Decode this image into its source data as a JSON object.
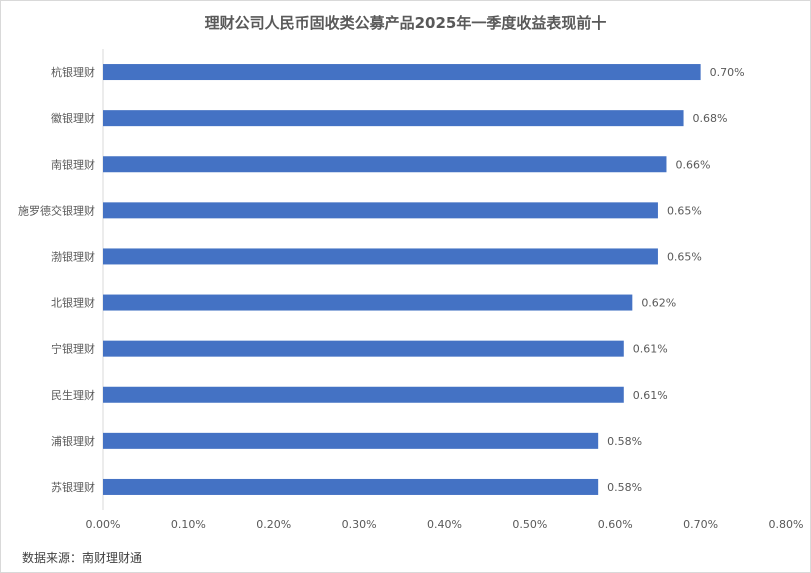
{
  "chart_data": {
    "type": "bar",
    "orientation": "horizontal",
    "title": "理财公司人民币固收类公募产品2025年一季度收益表现前十",
    "categories": [
      "杭银理财",
      "徽银理财",
      "南银理财",
      "施罗德交银理财",
      "渤银理财",
      "北银理财",
      "宁银理财",
      "民生理财",
      "浦银理财",
      "苏银理财"
    ],
    "values": [
      0.7,
      0.68,
      0.66,
      0.65,
      0.65,
      0.62,
      0.61,
      0.61,
      0.58,
      0.58
    ],
    "data_labels": [
      "0.70%",
      "0.68%",
      "0.66%",
      "0.65%",
      "0.65%",
      "0.62%",
      "0.61%",
      "0.61%",
      "0.58%",
      "0.58%"
    ],
    "xlim": [
      0,
      0.8
    ],
    "x_ticks": [
      "0.00%",
      "0.10%",
      "0.20%",
      "0.30%",
      "0.40%",
      "0.50%",
      "0.60%",
      "0.70%",
      "0.80%"
    ],
    "xlabel": "",
    "ylabel": "",
    "grid": false,
    "bar_color": "#4472C4"
  },
  "source": "数据来源：南财理财通"
}
